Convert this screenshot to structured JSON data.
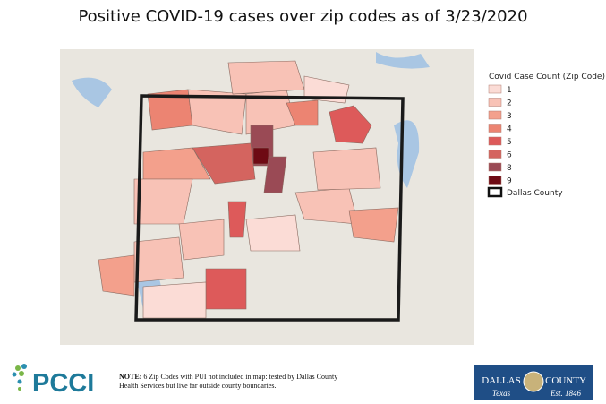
{
  "title": "Positive COVID-19 cases over zip codes as of 3/23/2020",
  "legend": {
    "title": "Covid Case Count (Zip Code)",
    "items": [
      {
        "label": "1",
        "color": "#fbdcd6"
      },
      {
        "label": "2",
        "color": "#f8c2b6"
      },
      {
        "label": "3",
        "color": "#f3a08c"
      },
      {
        "label": "4",
        "color": "#ec8472"
      },
      {
        "label": "5",
        "color": "#dd5a5a"
      },
      {
        "label": "6",
        "color": "#d4645f"
      },
      {
        "label": "8",
        "color": "#9a4a55"
      },
      {
        "label": "9",
        "color": "#6e0a14"
      }
    ],
    "boundary": "Dallas County"
  },
  "footer": {
    "logo": "PCCI",
    "note_label": "NOTE:",
    "note": "6 Zip Codes with PUI not included in map: tested by Dallas County Health Services but live far outside county boundaries.",
    "county_logo": {
      "line1": "DALLAS",
      "line2": "COUNTY",
      "line3": "Texas",
      "line4": "Est. 1846"
    }
  }
}
